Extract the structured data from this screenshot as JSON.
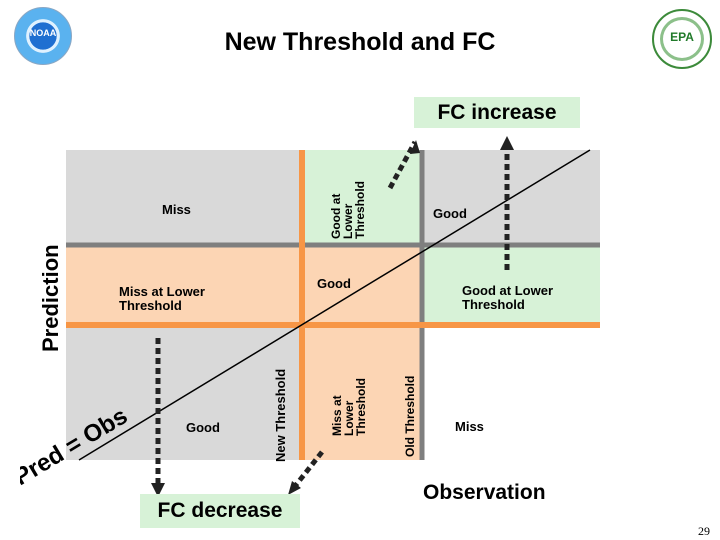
{
  "header": {
    "title": "New Threshold and FC",
    "left_logo_text": "NOAA",
    "right_logo_text": "EPA"
  },
  "labels": {
    "fc_increase": "FC increase",
    "fc_decrease": "FC decrease",
    "miss_top_left": "Miss",
    "good_at_lower_threshold_vertical": "Good at\nLower\nThreshold",
    "good_top_right": "Good",
    "miss_at_lower_threshold": "Miss at Lower\nThreshold",
    "good_center": "Good",
    "good_at_lower_threshold_right": "Good at Lower\nThreshold",
    "good_bottom_left": "Good",
    "new_threshold": "New Threshold",
    "miss_at_lower_threshold_vertical": "Miss at\nLower\nThreshold",
    "old_threshold": "Old Threshold",
    "miss_bottom_right": "Miss",
    "prediction": "Prediction",
    "observation": "Observation",
    "pred_obs": "Pred = Obs"
  },
  "colors": {
    "quadrant_gray": "#d9d9d9",
    "quadrant_orange": "#fcd5b4",
    "quadrant_green": "#d7f2d7",
    "line_orange": "#f79646",
    "line_gray": "#7f7f7f",
    "arrow_dark": "#222222"
  },
  "page_number": "29"
}
